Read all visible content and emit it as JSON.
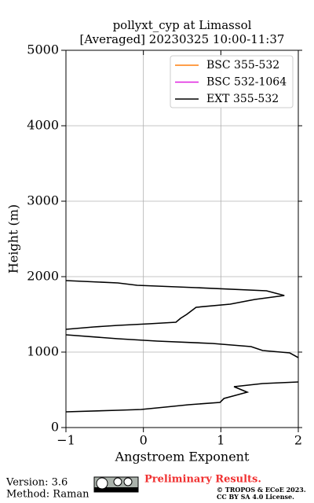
{
  "chart_data": {
    "type": "line",
    "title": "pollyxt_cyp at Limassol",
    "subtitle": "[Averaged] 20230325 10:00-11:37",
    "xlabel": "Angstroem Exponent",
    "ylabel": "Height (m)",
    "xlim": [
      -1,
      2
    ],
    "ylim": [
      0,
      5000
    ],
    "xticks": [
      {
        "value": -1,
        "label": "−1"
      },
      0,
      1,
      2
    ],
    "yticks": [
      0,
      1000,
      2000,
      3000,
      4000,
      5000
    ],
    "grid": true,
    "legend": "upper right",
    "y": [
      1948,
      1917,
      1885,
      1854,
      1812,
      1750,
      1698,
      1635,
      1594,
      1500,
      1448,
      1396,
      1375,
      1354,
      1333,
      1302,
      1265,
      1229,
      1177,
      1146,
      1115,
      1073,
      1021,
      990,
      927,
      760,
      604,
      583,
      542,
      469,
      427,
      385,
      333,
      302,
      271,
      240,
      229,
      208
    ],
    "series": [
      {
        "name": "BSC 355-532",
        "color": "#ff7f0e",
        "values": [
          null,
          null,
          null,
          null,
          null,
          null,
          null,
          null,
          null,
          null,
          null,
          null,
          null,
          null,
          null,
          null,
          null,
          null,
          null,
          null,
          null,
          null,
          null,
          null,
          null,
          null,
          null,
          null,
          null,
          null,
          null,
          null,
          null,
          null,
          null,
          null,
          null,
          null
        ]
      },
      {
        "name": "BSC 532-1064",
        "color": "#e020e0",
        "values": [
          null,
          null,
          null,
          null,
          null,
          null,
          null,
          null,
          null,
          null,
          null,
          null,
          null,
          null,
          null,
          null,
          null,
          null,
          null,
          null,
          null,
          null,
          null,
          null,
          null,
          null,
          null,
          null,
          null,
          null,
          null,
          null,
          null,
          null,
          null,
          null,
          null,
          null
        ]
      },
      {
        "name": "EXT 355-532",
        "color": "#000000",
        "values": [
          -1,
          -0.33,
          -0.08,
          0.68,
          1.59,
          1.82,
          1.44,
          1.12,
          0.68,
          0.56,
          0.48,
          0.42,
          0.07,
          -0.33,
          -0.64,
          -1,
          null,
          -1,
          -0.33,
          0.18,
          0.89,
          1.39,
          1.54,
          1.89,
          2,
          null,
          2,
          1.54,
          1.17,
          1.34,
          1.19,
          1.04,
          0.99,
          0.58,
          0.28,
          -0.03,
          -0.33,
          -1
        ]
      }
    ]
  },
  "footer": {
    "version": "Version: 3.6",
    "method": "Method: Raman",
    "status": "Preliminary Results.",
    "copyright": "© TROPOS & ECoE 2023.",
    "license": "CC BY SA 4.0 License."
  }
}
